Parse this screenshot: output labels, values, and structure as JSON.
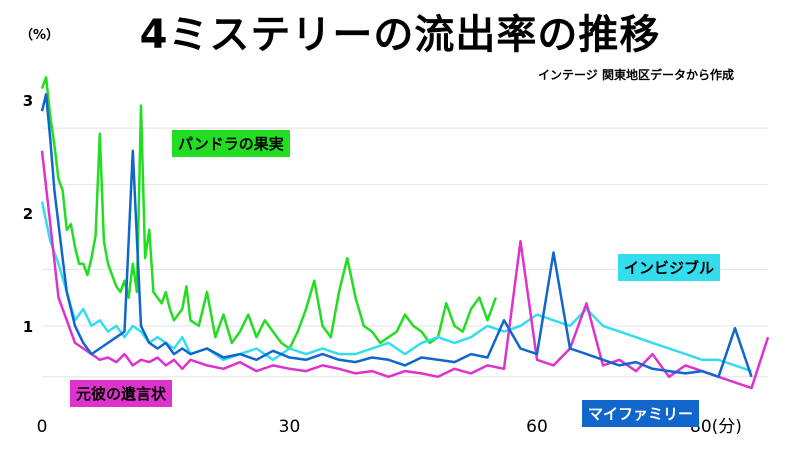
{
  "title": "4ミステリーの流出率の推移",
  "unit": "（%）",
  "source": "インテージ 関東地区データから作成",
  "labels": {
    "pandora": "パンドラの果実",
    "invisible": "インビジブル",
    "motokare": "元彼の遺言状",
    "myfamily": "マイファミリー"
  },
  "chart_data": {
    "type": "line",
    "title": "4ミステリーの流出率の推移",
    "xlabel": "",
    "ylabel": "（%）",
    "xlim": [
      0,
      88
    ],
    "ylim": [
      0.3,
      3.3
    ],
    "x_ticks": [
      "0",
      "30",
      "60",
      "80(分)"
    ],
    "x_tick_values": [
      0,
      30,
      60,
      80
    ],
    "y_ticks": [
      "3",
      "2",
      "1"
    ],
    "y_tick_values": [
      3,
      2,
      1
    ],
    "grid": true,
    "series": [
      {
        "name": "パンドラの果実",
        "color": "#22dd22",
        "x": [
          0,
          0.5,
          1,
          1.5,
          2,
          2.5,
          3,
          3.5,
          4,
          4.5,
          5,
          5.5,
          6,
          6.5,
          7,
          7.5,
          8,
          8.5,
          9,
          9.5,
          10,
          10.5,
          11,
          11.5,
          12,
          12.5,
          13,
          13.5,
          14,
          14.5,
          15,
          15.5,
          16,
          16.5,
          17,
          17.5,
          18,
          19,
          20,
          21,
          22,
          23,
          24,
          25,
          26,
          27,
          28,
          29,
          30,
          31,
          32,
          33,
          34,
          35,
          36,
          37,
          38,
          39,
          40,
          41,
          42,
          43,
          44,
          45,
          46,
          47,
          48,
          49,
          50,
          51,
          52,
          53,
          54,
          55
        ],
        "y": [
          3.1,
          3.2,
          2.85,
          2.6,
          2.3,
          2.2,
          1.85,
          1.9,
          1.7,
          1.55,
          1.55,
          1.45,
          1.6,
          1.8,
          2.7,
          1.75,
          1.55,
          1.45,
          1.35,
          1.3,
          1.4,
          1.25,
          1.55,
          1.3,
          2.95,
          1.6,
          1.85,
          1.3,
          1.25,
          1.2,
          1.3,
          1.15,
          1.05,
          1.1,
          1.15,
          1.35,
          1.05,
          1.0,
          1.3,
          0.9,
          1.1,
          0.85,
          0.95,
          1.1,
          0.9,
          1.05,
          0.95,
          0.85,
          0.8,
          0.95,
          1.15,
          1.4,
          1.0,
          0.9,
          1.3,
          1.6,
          1.25,
          1.0,
          0.95,
          0.85,
          0.9,
          0.95,
          1.1,
          1.0,
          0.95,
          0.85,
          0.9,
          1.2,
          1.0,
          0.95,
          1.15,
          1.25,
          1.05,
          1.25
        ]
      },
      {
        "name": "インビジブル",
        "color": "#33ddee",
        "x": [
          0,
          1,
          2,
          3,
          4,
          5,
          6,
          7,
          8,
          9,
          10,
          11,
          12,
          13,
          14,
          15,
          16,
          17,
          18,
          20,
          22,
          24,
          26,
          28,
          30,
          32,
          34,
          36,
          38,
          40,
          42,
          44,
          46,
          48,
          50,
          52,
          54,
          56,
          58,
          60,
          62,
          64,
          66,
          68,
          70,
          72,
          74,
          76,
          78,
          80,
          82,
          84,
          86
        ],
        "y": [
          2.1,
          1.75,
          1.55,
          1.3,
          1.05,
          1.15,
          1.0,
          1.05,
          0.95,
          1.0,
          0.9,
          1.0,
          0.95,
          0.85,
          0.9,
          0.85,
          0.8,
          0.9,
          0.75,
          0.8,
          0.7,
          0.75,
          0.8,
          0.7,
          0.8,
          0.75,
          0.8,
          0.75,
          0.75,
          0.8,
          0.85,
          0.75,
          0.85,
          0.9,
          0.85,
          0.9,
          1.0,
          0.95,
          1.0,
          1.1,
          1.05,
          1.0,
          1.15,
          1.0,
          0.95,
          0.9,
          0.85,
          0.8,
          0.75,
          0.7,
          0.7,
          0.65,
          0.6
        ]
      },
      {
        "name": "元彼の遺言状",
        "color": "#dd33cc",
        "x": [
          0,
          1,
          2,
          3,
          4,
          5,
          6,
          7,
          8,
          9,
          10,
          11,
          12,
          13,
          14,
          15,
          16,
          17,
          18,
          20,
          22,
          24,
          26,
          28,
          30,
          32,
          34,
          36,
          38,
          40,
          42,
          44,
          46,
          48,
          50,
          52,
          54,
          56,
          58,
          60,
          62,
          64,
          66,
          68,
          70,
          72,
          74,
          76,
          78,
          80,
          82,
          84,
          86,
          88
        ],
        "y": [
          2.55,
          1.9,
          1.25,
          1.05,
          0.85,
          0.8,
          0.75,
          0.7,
          0.72,
          0.68,
          0.75,
          0.65,
          0.7,
          0.68,
          0.72,
          0.65,
          0.7,
          0.62,
          0.7,
          0.65,
          0.62,
          0.68,
          0.6,
          0.65,
          0.62,
          0.6,
          0.65,
          0.62,
          0.58,
          0.6,
          0.55,
          0.6,
          0.58,
          0.55,
          0.62,
          0.58,
          0.65,
          0.62,
          1.75,
          0.7,
          0.65,
          0.8,
          1.2,
          0.65,
          0.7,
          0.6,
          0.75,
          0.55,
          0.65,
          0.6,
          0.55,
          0.5,
          0.45,
          0.9
        ]
      },
      {
        "name": "マイファミリー",
        "color": "#1166cc",
        "x": [
          0,
          0.5,
          1,
          1.5,
          2,
          2.5,
          3,
          3.5,
          4,
          5,
          6,
          7,
          8,
          9,
          10,
          11,
          12,
          13,
          14,
          15,
          16,
          17,
          18,
          20,
          22,
          24,
          26,
          28,
          30,
          32,
          34,
          36,
          38,
          40,
          42,
          44,
          46,
          48,
          50,
          52,
          54,
          56,
          58,
          60,
          62,
          64,
          66,
          68,
          70,
          72,
          74,
          76,
          78,
          80,
          82,
          84,
          86
        ],
        "y": [
          2.9,
          3.05,
          2.65,
          2.2,
          1.9,
          1.6,
          1.3,
          1.15,
          1.0,
          0.85,
          0.75,
          0.8,
          0.85,
          0.9,
          0.95,
          2.55,
          1.0,
          0.85,
          0.8,
          0.85,
          0.75,
          0.8,
          0.75,
          0.8,
          0.72,
          0.75,
          0.7,
          0.78,
          0.72,
          0.7,
          0.75,
          0.7,
          0.68,
          0.72,
          0.7,
          0.65,
          0.72,
          0.7,
          0.68,
          0.75,
          0.72,
          1.05,
          0.8,
          0.75,
          1.65,
          0.8,
          0.75,
          0.7,
          0.65,
          0.68,
          0.62,
          0.6,
          0.58,
          0.6,
          0.55,
          0.98,
          0.55
        ]
      }
    ]
  }
}
